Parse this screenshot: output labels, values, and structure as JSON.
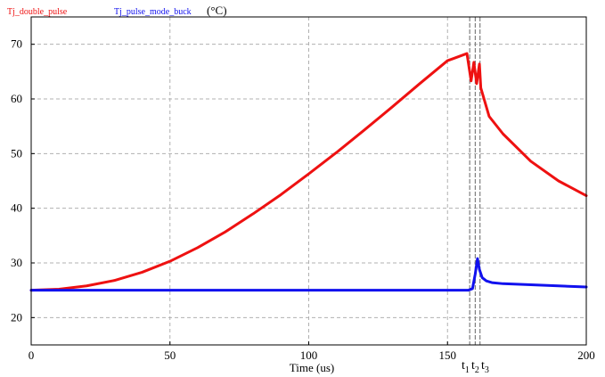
{
  "chart_data": {
    "type": "line",
    "title": "",
    "unit_label": "(°C)",
    "xlabel": "Time (us)",
    "ylabel": "",
    "xlim": [
      0,
      200
    ],
    "ylim": [
      15,
      75
    ],
    "xticks": [
      0,
      50,
      100,
      150,
      200
    ],
    "yticks": [
      20,
      30,
      40,
      50,
      60,
      70
    ],
    "grid": true,
    "legend_placement": "top-left",
    "colors": {
      "plot_border": "#000000",
      "grid": "#b0b0b0",
      "marker_lines": "#808080"
    },
    "series": [
      {
        "name": "Tj_double_pulse",
        "color": "#ee1111",
        "x": [
          0,
          10,
          20,
          30,
          40,
          50,
          60,
          70,
          80,
          90,
          100,
          110,
          120,
          130,
          140,
          150,
          157,
          158.5,
          159.5,
          160.5,
          161.5,
          162,
          165,
          170,
          180,
          190,
          200
        ],
        "y": [
          25.0,
          25.2,
          25.8,
          26.8,
          28.3,
          30.3,
          32.8,
          35.7,
          39.0,
          42.5,
          46.3,
          50.2,
          54.3,
          58.5,
          62.8,
          67.0,
          68.3,
          63.3,
          66.7,
          62.8,
          66.4,
          62.0,
          56.8,
          53.6,
          48.6,
          45.0,
          42.3
        ]
      },
      {
        "name": "Tj_pulse_mode_buck",
        "color": "#1111ee",
        "x": [
          0,
          50,
          100,
          150,
          157.5,
          159,
          160,
          160.8,
          161.5,
          162.5,
          164,
          166,
          170,
          180,
          190,
          200
        ],
        "y": [
          25.0,
          25.0,
          25.0,
          25.0,
          25.0,
          25.3,
          28.0,
          30.8,
          28.8,
          27.3,
          26.7,
          26.4,
          26.2,
          26.0,
          25.8,
          25.6
        ]
      }
    ],
    "markers": [
      {
        "base": "t",
        "sub": "1",
        "x": 158.0
      },
      {
        "base": "t",
        "sub": "2",
        "x": 160.0
      },
      {
        "base": "t",
        "sub": "3",
        "x": 161.7
      }
    ]
  }
}
